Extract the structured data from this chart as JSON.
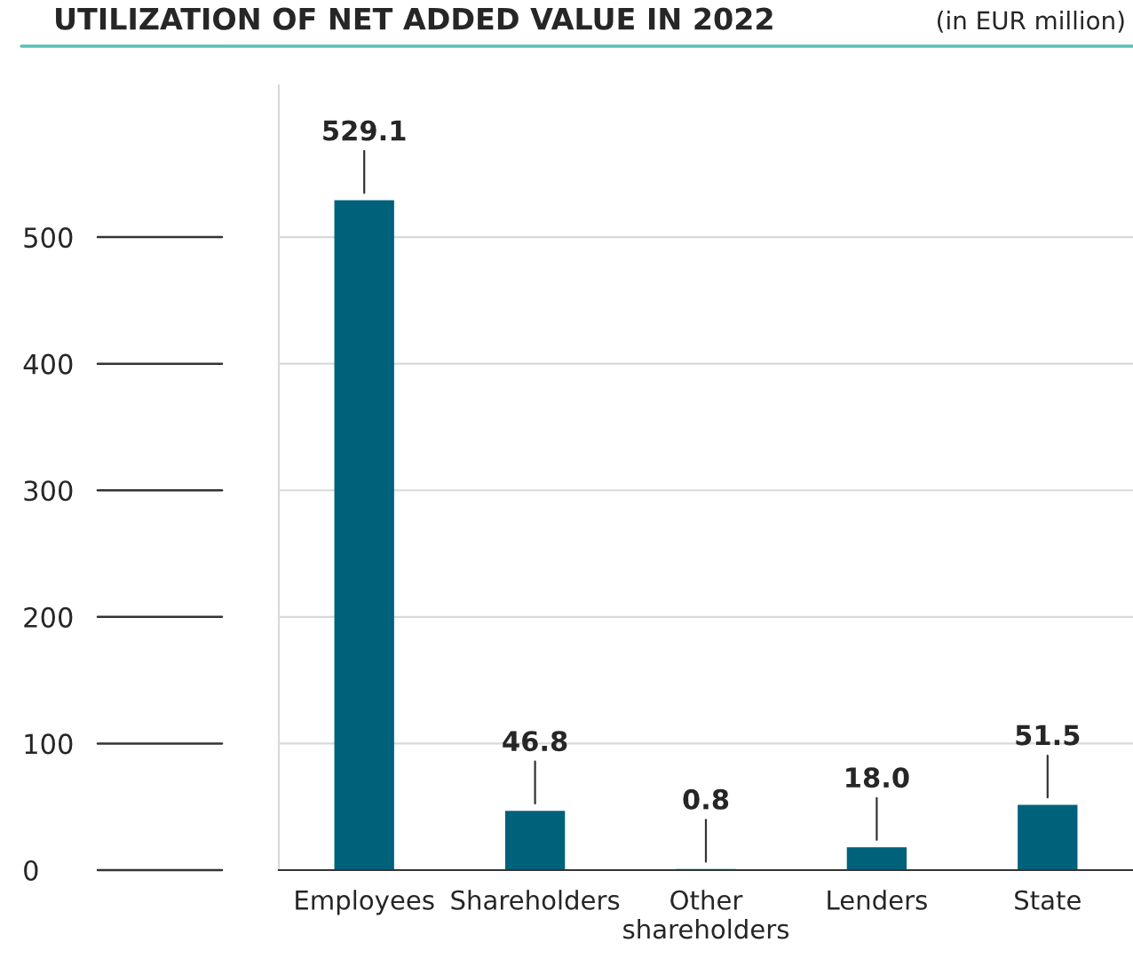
{
  "chart_data": {
    "type": "bar",
    "title": "UTILIZATION OF NET ADDED VALUE IN 2022",
    "subtitle": "(in EUR million)",
    "categories": [
      "Employees",
      "Shareholders",
      "Other\nshareholders",
      "Lenders",
      "State"
    ],
    "values": [
      529.1,
      46.8,
      0.8,
      18.0,
      51.5
    ],
    "value_labels": [
      "529.1",
      "46.8",
      "0.8",
      "18.0",
      "51.5"
    ],
    "color": "#00617b",
    "ylim": [
      0,
      620
    ],
    "yticks": [
      0,
      100,
      200,
      300,
      400,
      500
    ],
    "grid": "y"
  }
}
